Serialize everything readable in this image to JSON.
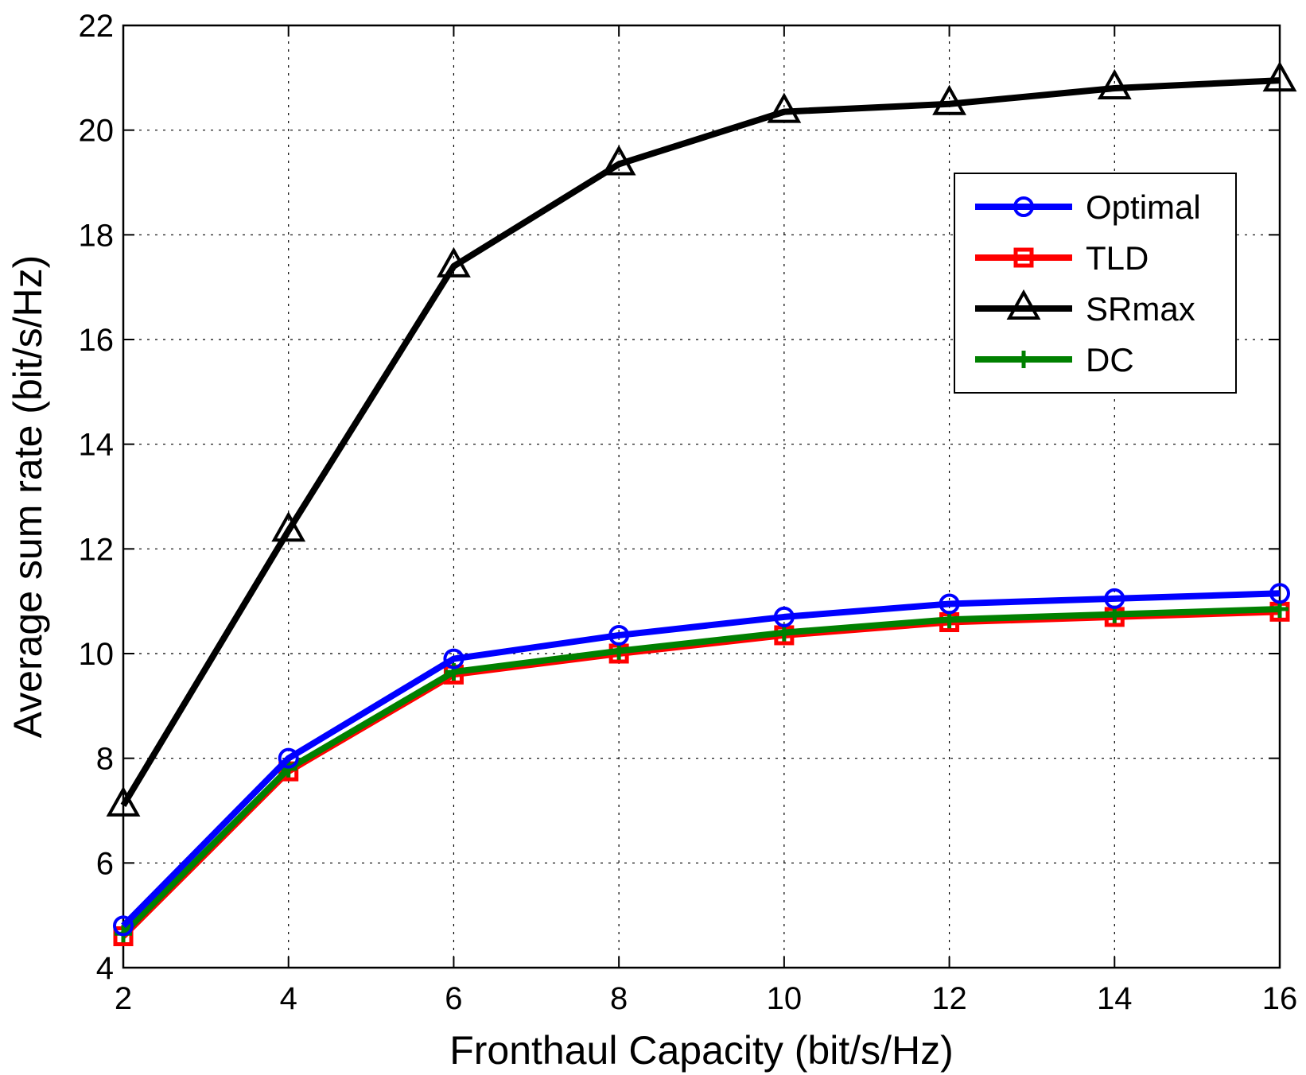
{
  "chart_data": {
    "type": "line",
    "title": "",
    "xlabel": "Fronthaul Capacity (bit/s/Hz)",
    "ylabel": "Average sum rate (bit/s/Hz)",
    "xlim": [
      2,
      16
    ],
    "ylim": [
      4,
      22
    ],
    "xticks": [
      2,
      4,
      6,
      8,
      10,
      12,
      14,
      16
    ],
    "yticks": [
      4,
      6,
      8,
      10,
      12,
      14,
      16,
      18,
      20,
      22
    ],
    "grid": true,
    "legend_position": "upper-right",
    "x": [
      2,
      4,
      6,
      8,
      10,
      12,
      14,
      16
    ],
    "series": [
      {
        "name": "Optimal",
        "color": "#0000ff",
        "marker": "circle",
        "values": [
          4.8,
          8.0,
          9.9,
          10.35,
          10.7,
          10.95,
          11.05,
          11.15
        ]
      },
      {
        "name": "TLD",
        "color": "#ff0000",
        "marker": "square",
        "values": [
          4.6,
          7.75,
          9.6,
          10.0,
          10.35,
          10.6,
          10.7,
          10.8
        ]
      },
      {
        "name": "SRmax",
        "color": "#000000",
        "marker": "triangle",
        "values": [
          7.1,
          12.35,
          17.4,
          19.35,
          20.35,
          20.5,
          20.8,
          20.95
        ]
      },
      {
        "name": "DC",
        "color": "#008000",
        "marker": "plus",
        "values": [
          4.65,
          7.8,
          9.65,
          10.05,
          10.4,
          10.65,
          10.75,
          10.85
        ]
      }
    ]
  }
}
